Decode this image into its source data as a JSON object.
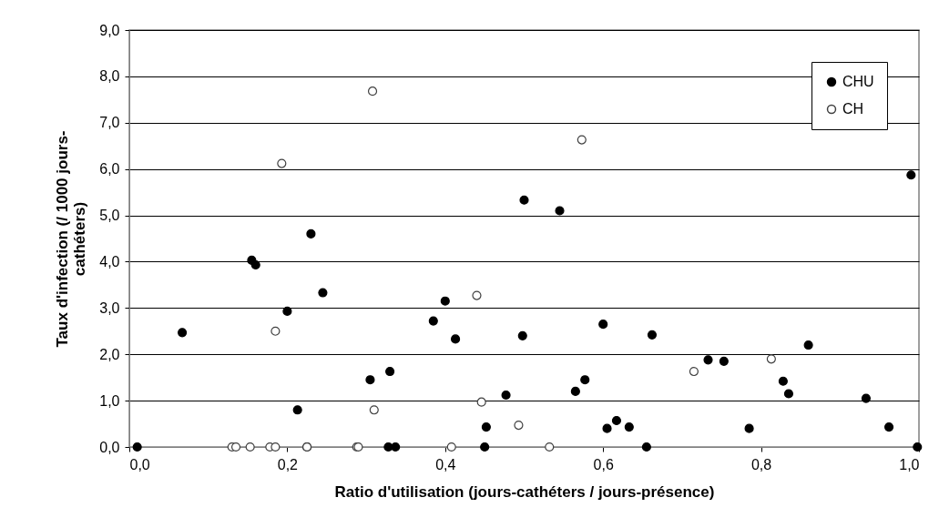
{
  "chart_data": {
    "type": "scatter",
    "xlabel": "Ratio d'utilisation (jours-cathéters / jours-présence)",
    "ylabel": "Taux d'infection (/ 1000 jours-cathéters)",
    "xlim": [
      0,
      1
    ],
    "ylim": [
      0,
      9
    ],
    "xticks": [
      {
        "value": 0,
        "label": "0,0"
      },
      {
        "value": 0.2,
        "label": "0,2"
      },
      {
        "value": 0.4,
        "label": "0,4"
      },
      {
        "value": 0.6,
        "label": "0,6"
      },
      {
        "value": 0.8,
        "label": "0,8"
      },
      {
        "value": 1,
        "label": "1,0"
      }
    ],
    "yticks": [
      {
        "value": 0,
        "label": "0,0"
      },
      {
        "value": 1,
        "label": "1,0"
      },
      {
        "value": 2,
        "label": "2,0"
      },
      {
        "value": 3,
        "label": "3,0"
      },
      {
        "value": 4,
        "label": "4,0"
      },
      {
        "value": 5,
        "label": "5,0"
      },
      {
        "value": 6,
        "label": "6,0"
      },
      {
        "value": 7,
        "label": "7,0"
      },
      {
        "value": 8,
        "label": "8,0"
      },
      {
        "value": 9,
        "label": "9,0"
      }
    ],
    "grid": "y",
    "legend": "top right",
    "marker": "circle",
    "series": [
      {
        "name": "CHU",
        "color": "#000000",
        "x": [
          0.01,
          0.067,
          0.155,
          0.16,
          0.2,
          0.213,
          0.225,
          0.23,
          0.245,
          0.305,
          0.33,
          0.328,
          0.337,
          0.385,
          0.4,
          0.413,
          0.45,
          0.452,
          0.477,
          0.498,
          0.5,
          0.545,
          0.565,
          0.577,
          0.6,
          0.605,
          0.617,
          0.633,
          0.655,
          0.662,
          0.733,
          0.753,
          0.785,
          0.828,
          0.835,
          0.86,
          0.933,
          0.962,
          0.99,
          0.998
        ],
        "values": [
          0,
          2.47,
          4.03,
          3.93,
          2.93,
          0.8,
          0,
          4.6,
          3.33,
          1.45,
          1.63,
          0,
          0,
          2.72,
          3.15,
          2.33,
          0,
          0.43,
          1.12,
          2.4,
          5.33,
          5.1,
          1.2,
          1.45,
          2.65,
          0.4,
          0.57,
          0.43,
          0,
          2.42,
          1.88,
          1.85,
          0.4,
          1.42,
          1.15,
          2.2,
          1.05,
          0.43,
          5.87,
          0
        ]
      },
      {
        "name": "CH",
        "color": "#404040",
        "x": [
          0.13,
          0.135,
          0.153,
          0.178,
          0.185,
          0.185,
          0.193,
          0.225,
          0.288,
          0.29,
          0.308,
          0.31,
          0.408,
          0.44,
          0.446,
          0.493,
          0.532,
          0.573,
          0.715,
          0.813
        ],
        "values": [
          0,
          0,
          0,
          0,
          0,
          2.5,
          6.12,
          0,
          0,
          0,
          7.68,
          0.8,
          0,
          3.27,
          0.97,
          0.47,
          0,
          6.63,
          1.63,
          1.9
        ]
      }
    ]
  }
}
